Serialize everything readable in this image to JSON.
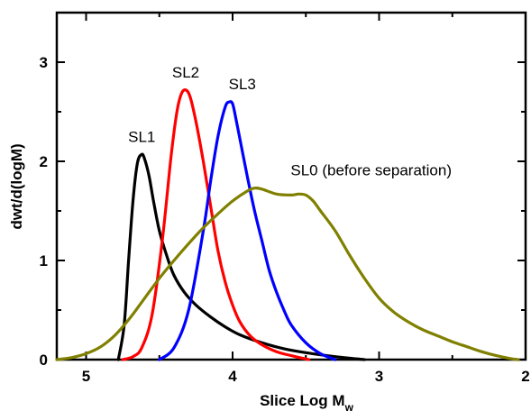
{
  "chart_data": {
    "type": "line",
    "title": "",
    "xlabel": "Slice Log M",
    "xlabel_subscript": "w",
    "ylabel": "dwt/d(logM)",
    "xlim": [
      5.2,
      2.0
    ],
    "ylim": [
      0,
      3.5
    ],
    "x_reversed": true,
    "x_ticks": [
      5,
      4,
      3,
      2
    ],
    "x_tick_labels": [
      "5",
      "4",
      "3",
      "2"
    ],
    "y_ticks": [
      0,
      1,
      2,
      3
    ],
    "y_tick_labels": [
      "0",
      "1",
      "2",
      "3"
    ],
    "grid": false,
    "legend": "none (series labeled directly on chart)",
    "series": [
      {
        "name": "SL1",
        "color": "#000000",
        "x": [
          4.78,
          4.74,
          4.71,
          4.68,
          4.65,
          4.62,
          4.6,
          4.57,
          4.54,
          4.5,
          4.45,
          4.4,
          4.33,
          4.25,
          4.15,
          4.05,
          3.95,
          3.8,
          3.65,
          3.5,
          3.3,
          3.1
        ],
        "y": [
          0.0,
          0.35,
          1.0,
          1.6,
          1.98,
          2.07,
          2.02,
          1.85,
          1.6,
          1.3,
          1.05,
          0.85,
          0.68,
          0.55,
          0.43,
          0.33,
          0.25,
          0.17,
          0.11,
          0.07,
          0.03,
          0.0
        ]
      },
      {
        "name": "SL2",
        "color": "#ff0000",
        "x": [
          4.75,
          4.68,
          4.62,
          4.55,
          4.48,
          4.42,
          4.38,
          4.35,
          4.32,
          4.29,
          4.25,
          4.2,
          4.15,
          4.1,
          4.05,
          4.0,
          3.95,
          3.88,
          3.8,
          3.7,
          3.6,
          3.48
        ],
        "y": [
          0.0,
          0.03,
          0.12,
          0.45,
          1.2,
          2.05,
          2.5,
          2.68,
          2.72,
          2.65,
          2.4,
          2.0,
          1.55,
          1.1,
          0.78,
          0.55,
          0.38,
          0.24,
          0.15,
          0.08,
          0.04,
          0.0
        ]
      },
      {
        "name": "SL3",
        "color": "#0000ff",
        "x": [
          4.5,
          4.4,
          4.3,
          4.2,
          4.15,
          4.1,
          4.05,
          4.02,
          4.0,
          3.98,
          3.94,
          3.9,
          3.85,
          3.8,
          3.75,
          3.7,
          3.65,
          3.6,
          3.5,
          3.4,
          3.3
        ],
        "y": [
          0.0,
          0.12,
          0.5,
          1.3,
          1.8,
          2.25,
          2.55,
          2.6,
          2.58,
          2.45,
          2.15,
          1.85,
          1.5,
          1.2,
          0.9,
          0.68,
          0.5,
          0.35,
          0.17,
          0.06,
          0.0
        ]
      },
      {
        "name": "SL0 (before separation)",
        "color": "#808000",
        "x": [
          5.2,
          5.1,
          5.0,
          4.9,
          4.8,
          4.7,
          4.6,
          4.5,
          4.4,
          4.3,
          4.2,
          4.1,
          4.0,
          3.9,
          3.85,
          3.8,
          3.7,
          3.6,
          3.55,
          3.5,
          3.45,
          3.4,
          3.3,
          3.2,
          3.1,
          3.0,
          2.9,
          2.8,
          2.7,
          2.6,
          2.5,
          2.4,
          2.3,
          2.2,
          2.1,
          2.05
        ],
        "y": [
          0.0,
          0.02,
          0.06,
          0.13,
          0.25,
          0.42,
          0.62,
          0.82,
          1.0,
          1.17,
          1.33,
          1.47,
          1.6,
          1.7,
          1.73,
          1.72,
          1.67,
          1.66,
          1.67,
          1.66,
          1.6,
          1.5,
          1.3,
          1.05,
          0.82,
          0.62,
          0.48,
          0.38,
          0.3,
          0.24,
          0.18,
          0.13,
          0.08,
          0.04,
          0.01,
          0.0
        ]
      }
    ]
  }
}
